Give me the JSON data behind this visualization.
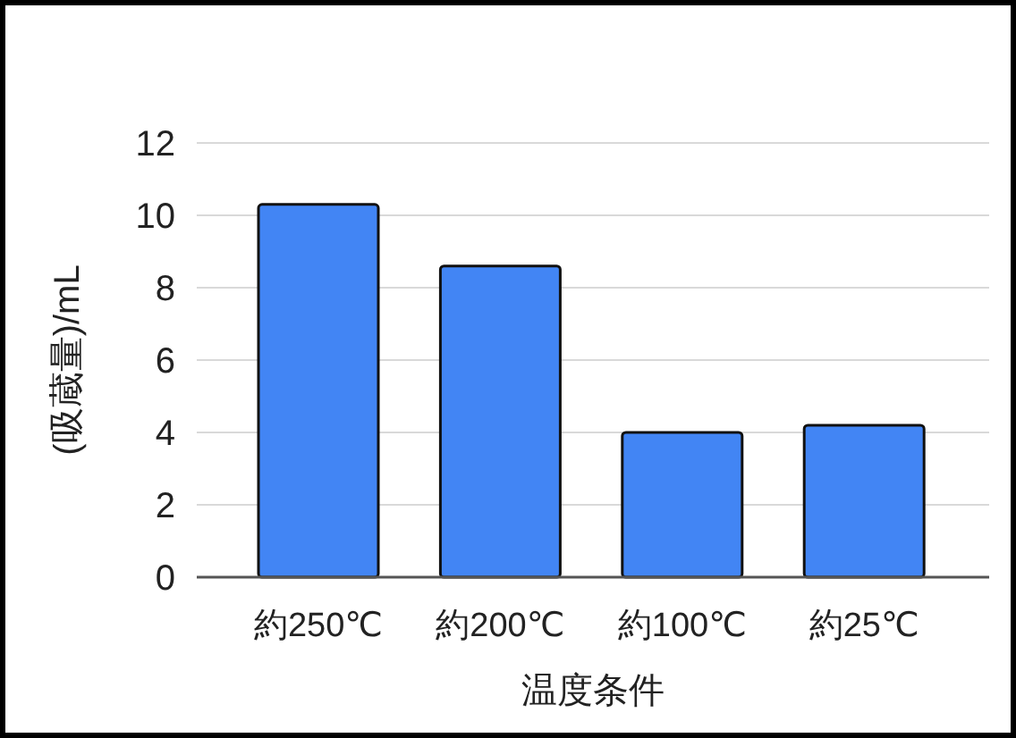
{
  "chart_data": {
    "type": "bar",
    "xlabel": "温度条件",
    "ylabel": "(吸蔵量)/mL",
    "categories": [
      "約250℃",
      "約200℃",
      "約100℃",
      "約25℃"
    ],
    "values": [
      10.3,
      8.6,
      4.0,
      4.2
    ],
    "color": "#4285f4",
    "ylim": [
      0,
      12
    ],
    "yticks": [
      0,
      2,
      4,
      6,
      8,
      10,
      12
    ],
    "grid": "y"
  }
}
